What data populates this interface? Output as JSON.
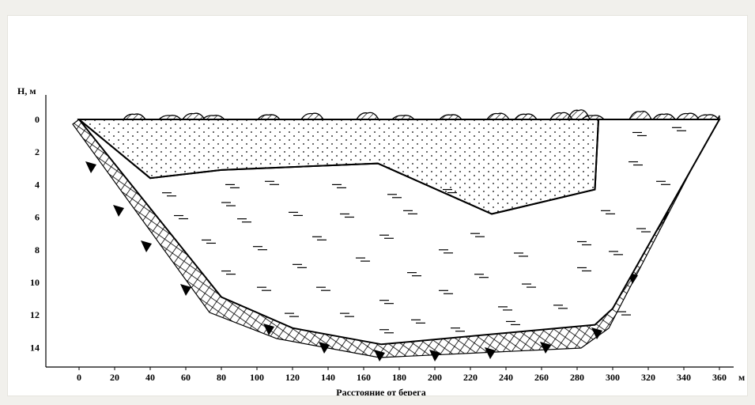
{
  "diagram": {
    "y_axis_label": "H, м",
    "x_axis_label": "Расстояние от берега",
    "x_unit": "м",
    "x_ticks": [
      "0",
      "20",
      "40",
      "60",
      "80",
      "100",
      "120",
      "140",
      "160",
      "180",
      "200",
      "220",
      "240",
      "260",
      "280",
      "300",
      "320",
      "340",
      "360"
    ],
    "y_ticks": [
      "0",
      "2",
      "4",
      "6",
      "8",
      "10",
      "12",
      "14"
    ],
    "x_range_m": [
      0,
      360
    ],
    "depth_range_m": [
      0,
      14
    ],
    "colors": {
      "line": "#000000",
      "background": "#ffffff",
      "page": "#f1f0ec"
    },
    "regions": {
      "sand_layer": {
        "pattern": "dots",
        "outline_points_m": [
          [
            0,
            0
          ],
          [
            292,
            0
          ],
          [
            290,
            4.3
          ],
          [
            232,
            5.8
          ],
          [
            168,
            2.7
          ],
          [
            80,
            3.1
          ],
          [
            40,
            3.6
          ],
          [
            0,
            0
          ]
        ]
      },
      "water_silt_layer": {
        "pattern": "dashes",
        "outline_points_m": [
          [
            0,
            0
          ],
          [
            40,
            3.6
          ],
          [
            80,
            3.1
          ],
          [
            168,
            2.7
          ],
          [
            232,
            5.8
          ],
          [
            290,
            4.3
          ],
          [
            292,
            0
          ],
          [
            360,
            0
          ],
          [
            300,
            11.6
          ],
          [
            290,
            12.6
          ],
          [
            170,
            13.8
          ],
          [
            120,
            12.8
          ],
          [
            80,
            10.9
          ],
          [
            0,
            0
          ]
        ]
      },
      "bedrock": {
        "pattern": "crosshatch",
        "description_icon": "crosshatch-rock-icon"
      },
      "surface_vegetation": {
        "pattern": "hatched-bumps",
        "description_icon": "vegetation-icon"
      }
    },
    "bed_profile_points_m": [
      [
        0,
        0
      ],
      [
        80,
        10.9
      ],
      [
        120,
        12.8
      ],
      [
        170,
        13.8
      ],
      [
        290,
        12.6
      ],
      [
        300,
        11.6
      ],
      [
        360,
        0
      ]
    ]
  }
}
